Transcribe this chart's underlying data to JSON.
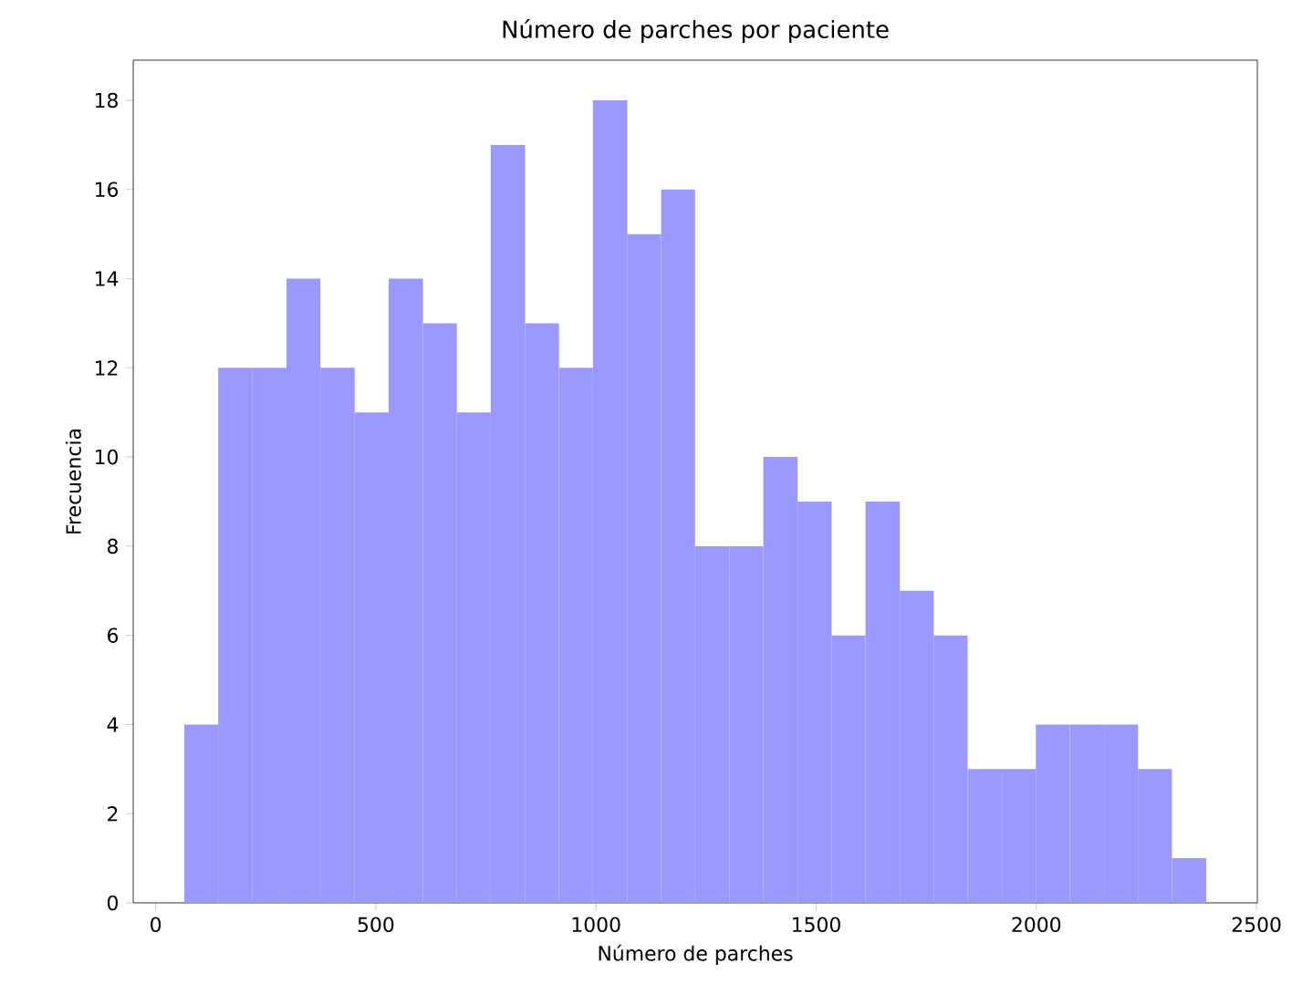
{
  "chart_data": {
    "type": "histogram",
    "title": "Número de parches por paciente",
    "xlabel": "Número de parches",
    "ylabel": "Frecuencia",
    "bins": [
      65,
      142,
      220,
      297,
      374,
      452,
      529,
      607,
      684,
      761,
      839,
      916,
      993,
      1071,
      1148,
      1225,
      1303,
      1380,
      1458,
      1535,
      1612,
      1690,
      1767,
      1844,
      1922,
      1999,
      2076,
      2154,
      2231,
      2308,
      2386
    ],
    "values": [
      4,
      12,
      12,
      14,
      12,
      11,
      14,
      13,
      11,
      17,
      13,
      12,
      18,
      15,
      16,
      8,
      8,
      10,
      9,
      6,
      9,
      7,
      6,
      3,
      3,
      4,
      4,
      4,
      3,
      1
    ],
    "color": "#9999ff",
    "xlim": [
      -51,
      2502
    ],
    "ylim": [
      0,
      18.9
    ],
    "xticks": [
      0,
      500,
      1000,
      1500,
      2000,
      2500
    ],
    "yticks": [
      0,
      2,
      4,
      6,
      8,
      10,
      12,
      14,
      16,
      18
    ]
  }
}
